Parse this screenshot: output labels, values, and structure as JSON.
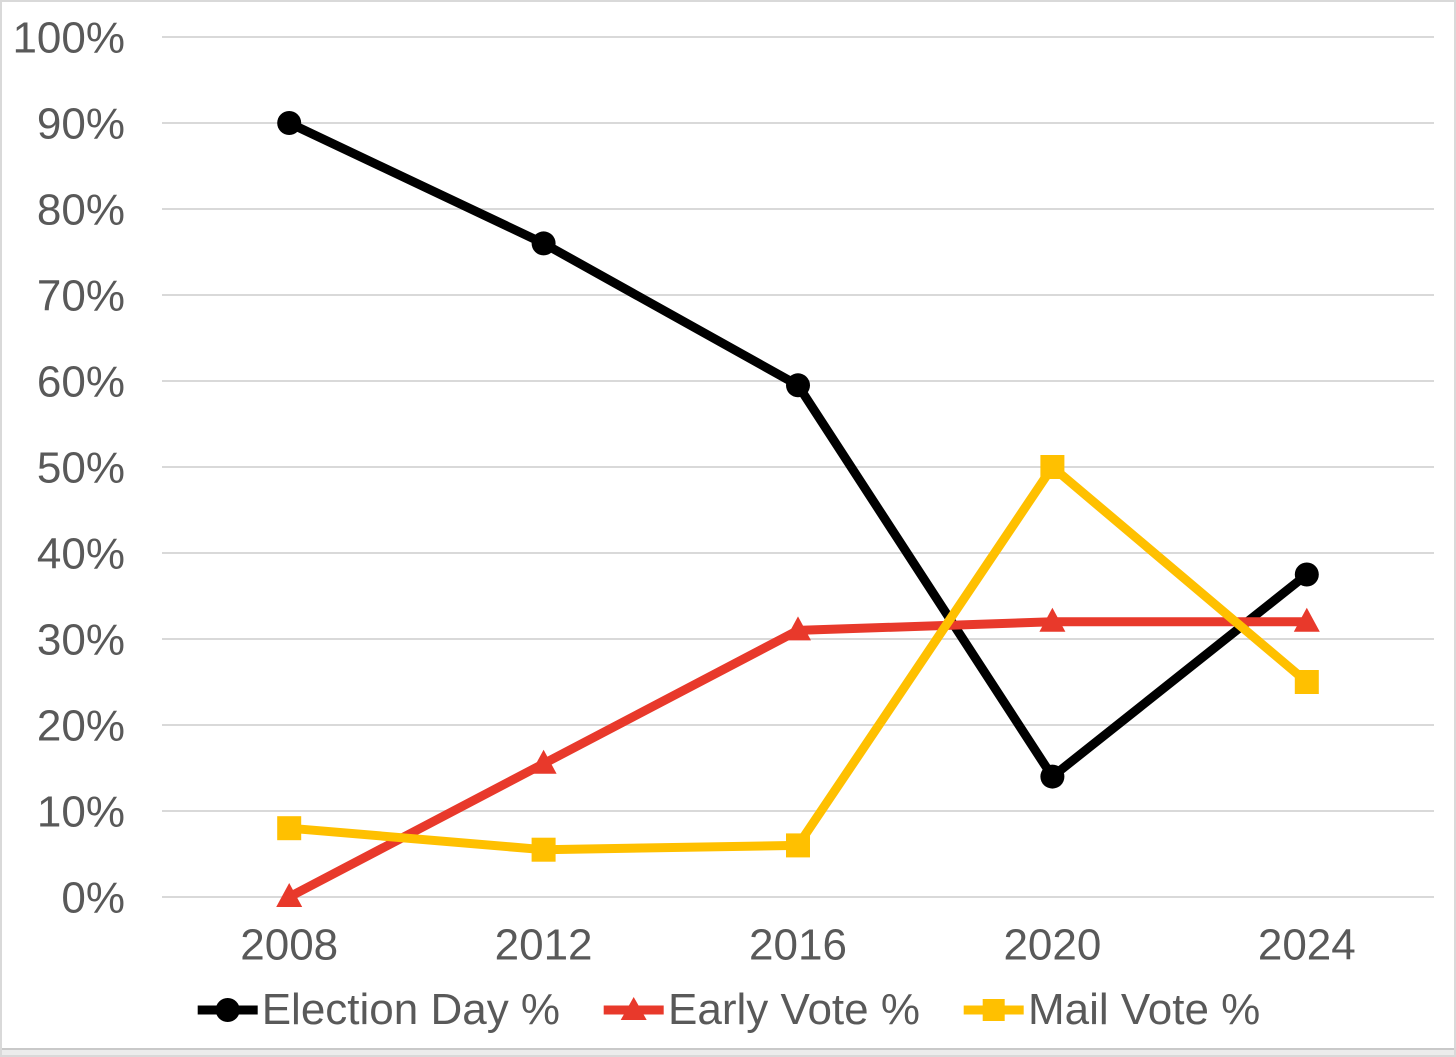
{
  "chart_data": {
    "type": "line",
    "title": "",
    "categories": [
      "2008",
      "2012",
      "2016",
      "2020",
      "2024"
    ],
    "x": [
      2008,
      2012,
      2016,
      2020,
      2024
    ],
    "y_axis": {
      "min": 0,
      "max": 100,
      "step": 10,
      "tick_labels": [
        "0%",
        "10%",
        "20%",
        "30%",
        "40%",
        "50%",
        "60%",
        "70%",
        "80%",
        "90%",
        "100%"
      ]
    },
    "xlabel": "",
    "ylabel": "",
    "grid": "horizontal",
    "legend_position": "bottom",
    "series": [
      {
        "name": "Election Day %",
        "color": "#000000",
        "marker": "circle",
        "values": [
          90,
          76,
          59.5,
          14,
          37.5
        ]
      },
      {
        "name": "Early Vote %",
        "color": "#E8392B",
        "marker": "triangle",
        "values": [
          0,
          15.5,
          31,
          32,
          32
        ]
      },
      {
        "name": "Mail Vote %",
        "color": "#FFC000",
        "marker": "square",
        "values": [
          8,
          5.5,
          6,
          50,
          25
        ]
      }
    ]
  },
  "colors": {
    "grid": "#D9D9D9",
    "axis_text": "#595959",
    "background": "#FFFFFF",
    "border": "#D9D9D9"
  }
}
